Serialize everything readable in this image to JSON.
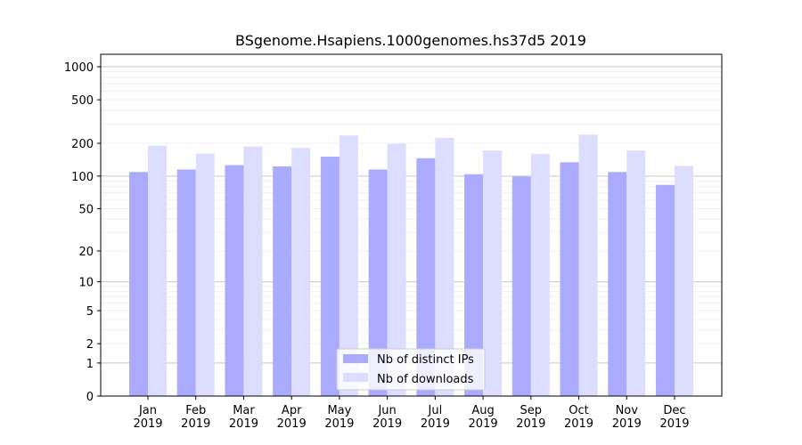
{
  "chart_data": {
    "type": "bar",
    "title": "BSgenome.Hsapiens.1000genomes.hs37d5 2019",
    "xlabel": "",
    "ylabel": "",
    "yscale": "symlog",
    "ylim": [
      0,
      1300
    ],
    "yticks": [
      0,
      1,
      2,
      5,
      10,
      20,
      50,
      100,
      200,
      500,
      1000
    ],
    "ytick_labels": [
      "0",
      "1",
      "2",
      "5",
      "10",
      "20",
      "50",
      "100",
      "200",
      "500",
      "1000"
    ],
    "categories": [
      "Jan\n2019",
      "Feb\n2019",
      "Mar\n2019",
      "Apr\n2019",
      "May\n2019",
      "Jun\n2019",
      "Jul\n2019",
      "Aug\n2019",
      "Sep\n2019",
      "Oct\n2019",
      "Nov\n2019",
      "Dec\n2019"
    ],
    "series": [
      {
        "name": "Nb of distinct IPs",
        "color": "#aaaaff",
        "values": [
          109,
          115,
          126,
          123,
          151,
          115,
          146,
          104,
          99,
          134,
          109,
          83
        ]
      },
      {
        "name": "Nb of downloads",
        "color": "#ddddff",
        "values": [
          190,
          161,
          187,
          182,
          236,
          198,
          224,
          172,
          160,
          240,
          172,
          124
        ]
      }
    ],
    "grid": true,
    "legend_position": "bottom-center"
  }
}
